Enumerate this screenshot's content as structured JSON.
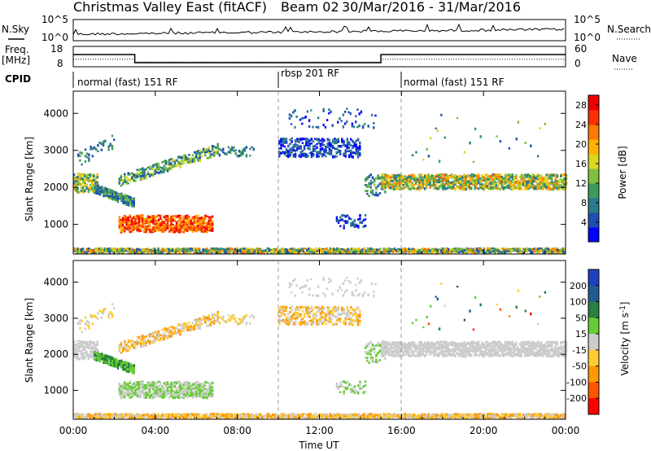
{
  "header": {
    "title": "Christmas Valley East (fitACF)",
    "beam": "Beam 02",
    "date_range": "30/Mar/2016 - 31/Mar/2016"
  },
  "top_panels": {
    "nsky_label": "N.Sky",
    "nsearch_label": "N.Search",
    "nsky_ticks": [
      "10^5",
      "10^0"
    ],
    "nsearch_ticks": [
      "10^5",
      "10^0"
    ],
    "freq_label_1": "Freq.",
    "freq_label_2": "[MHz]",
    "freq_ticks": [
      "18",
      "8"
    ],
    "nave_label": "Nave",
    "nave_ticks": [
      "60",
      "0"
    ],
    "cpid_label": "CPID"
  },
  "cpid_segments": [
    {
      "start_h": 0,
      "end_h": 10,
      "label": "normal (fast) 151 RF"
    },
    {
      "start_h": 10,
      "end_h": 16,
      "label": "rbsp 201 RF"
    },
    {
      "start_h": 16,
      "end_h": 24,
      "label": "normal (fast) 151 RF"
    }
  ],
  "chart_data": [
    {
      "type": "line",
      "panel": "noise",
      "series": [
        {
          "name": "N.Sky",
          "style": "solid"
        },
        {
          "name": "N.Search",
          "style": "dotted"
        }
      ]
    },
    {
      "type": "line",
      "panel": "frequency",
      "series": [
        {
          "name": "Freq.",
          "style": "solid",
          "unit": "MHz",
          "x": [
            0,
            3,
            3,
            15,
            15,
            24
          ],
          "y": [
            14,
            14,
            10,
            10,
            14,
            14
          ]
        },
        {
          "name": "Nave",
          "style": "dotted",
          "x": [
            0,
            3,
            3,
            15,
            15,
            24
          ],
          "y": [
            22,
            22,
            14,
            14,
            22,
            22
          ]
        }
      ],
      "ylim_freq": [
        8,
        18
      ],
      "ylim_nave": [
        0,
        60
      ]
    },
    {
      "type": "heatmap",
      "panel": "power",
      "xlabel": "",
      "ylabel": "Slant Range [km]",
      "xlim": [
        0,
        24
      ],
      "ylim": [
        200,
        4600
      ],
      "colorbar_label": "Power [dB]",
      "colorbar_ticks": [
        4,
        8,
        12,
        16,
        20,
        24,
        28
      ],
      "colorbar_range": [
        0,
        30
      ],
      "y_ticks": [
        1000,
        2000,
        3000,
        4000
      ]
    },
    {
      "type": "heatmap",
      "panel": "velocity",
      "xlabel": "Time UT",
      "ylabel": "Slant Range [km]",
      "xlim": [
        0,
        24
      ],
      "ylim": [
        200,
        4600
      ],
      "colorbar_label": "Velocity [m s^-1]",
      "colorbar_ticks": [
        200,
        100,
        50,
        15,
        -15,
        -50,
        -100,
        -200
      ],
      "y_ticks": [
        1000,
        2000,
        3000,
        4000
      ],
      "x_ticks": [
        "00:00",
        "04:00",
        "08:00",
        "12:00",
        "16:00",
        "20:00",
        "00:00"
      ]
    }
  ],
  "power_colors": [
    "#0000ff",
    "#1f4fb0",
    "#2b7a8a",
    "#3e9a5a",
    "#7fbf3f",
    "#d8d820",
    "#ffb000",
    "#ff7a00",
    "#ff3000",
    "#ee0000"
  ],
  "velocity_colors": [
    "#2040c0",
    "#205c90",
    "#2a8040",
    "#66cc33",
    "#cccccc",
    "#ffcc33",
    "#ff9900",
    "#ff5500",
    "#ff0000"
  ]
}
